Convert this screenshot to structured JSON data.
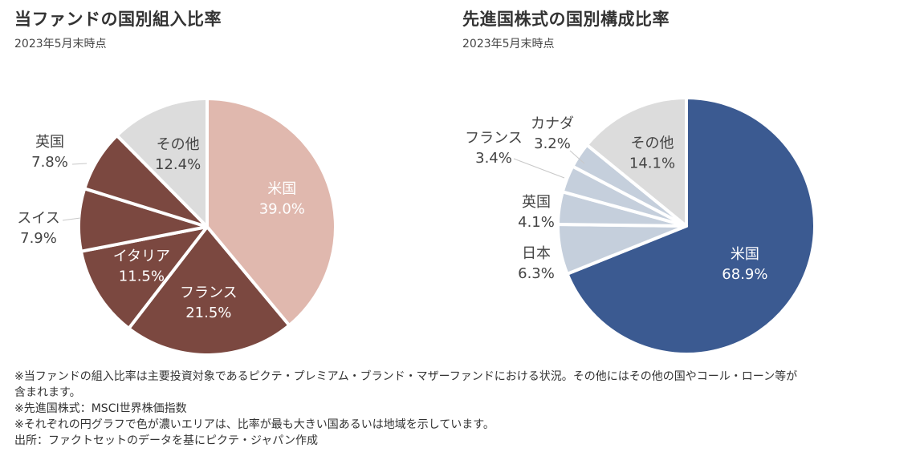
{
  "chart_data": [
    {
      "type": "pie",
      "title": "当ファンドの国別組入比率",
      "subtitle": "2023年5月末時点",
      "slices": [
        {
          "label": "米国",
          "value": 39.0,
          "value_text": "39.0%",
          "color": "#e0b8ae",
          "text_color": "#ffffff"
        },
        {
          "label": "フランス",
          "value": 21.5,
          "value_text": "21.5%",
          "color": "#7b4840",
          "text_color": "#ffffff"
        },
        {
          "label": "イタリア",
          "value": 11.5,
          "value_text": "11.5%",
          "color": "#7b4840",
          "text_color": "#ffffff"
        },
        {
          "label": "スイス",
          "value": 7.9,
          "value_text": "7.9%",
          "color": "#7b4840",
          "text_color": "#444444"
        },
        {
          "label": "英国",
          "value": 7.8,
          "value_text": "7.8%",
          "color": "#7b4840",
          "text_color": "#444444"
        },
        {
          "label": "その他",
          "value": 12.4,
          "value_text": "12.4%",
          "color": "#dcdcdc",
          "text_color": "#444444"
        }
      ]
    },
    {
      "type": "pie",
      "title": "先進国株式の国別構成比率",
      "subtitle": "2023年5月末時点",
      "slices": [
        {
          "label": "米国",
          "value": 68.9,
          "value_text": "68.9%",
          "color": "#3b5a91",
          "text_color": "#ffffff"
        },
        {
          "label": "日本",
          "value": 6.3,
          "value_text": "6.3%",
          "color": "#c5cfdc",
          "text_color": "#444444"
        },
        {
          "label": "英国",
          "value": 4.1,
          "value_text": "4.1%",
          "color": "#c5cfdc",
          "text_color": "#444444"
        },
        {
          "label": "フランス",
          "value": 3.4,
          "value_text": "3.4%",
          "color": "#c5cfdc",
          "text_color": "#444444"
        },
        {
          "label": "カナダ",
          "value": 3.2,
          "value_text": "3.2%",
          "color": "#c5cfdc",
          "text_color": "#444444"
        },
        {
          "label": "その他",
          "value": 14.1,
          "value_text": "14.1%",
          "color": "#dcdcdc",
          "text_color": "#444444"
        }
      ]
    }
  ],
  "notes": [
    "※当ファンドの組入比率は主要投資対象であるピクテ・プレミアム・ブランド・マザーファンドにおける状況。その他にはその他の国やコール・ローン等が",
    "含まれます。",
    "※先進国株式：MSCI世界株価指数",
    "※それぞれの円グラフで色が濃いエリアは、比率が最も大きい国あるいは地域を示しています。",
    "出所：ファクトセットのデータを基にピクテ・ジャパン作成"
  ]
}
